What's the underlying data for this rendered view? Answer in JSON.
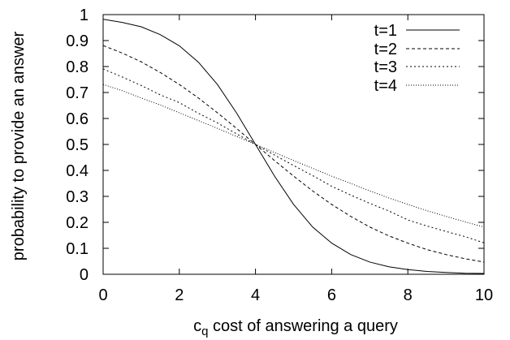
{
  "chart_data": {
    "type": "line",
    "title": "",
    "xlabel": "c",
    "xlabel_sub": "q",
    "xlabel_rest": " cost of answering a query",
    "ylabel": "probability to provide an answer",
    "xlim": [
      0,
      10
    ],
    "ylim": [
      0,
      1
    ],
    "xticks": [
      0,
      2,
      4,
      6,
      8,
      10
    ],
    "xtick_labels": [
      "0",
      "2",
      "4",
      "6",
      "8",
      "10"
    ],
    "yticks": [
      0,
      0.1,
      0.2,
      0.3,
      0.4,
      0.5,
      0.6,
      0.7,
      0.8,
      0.9,
      1
    ],
    "ytick_labels": [
      "0",
      "0.1",
      "0.2",
      "0.3",
      "0.4",
      "0.5",
      "0.6",
      "0.7",
      "0.8",
      "0.9",
      "1"
    ],
    "grid": false,
    "legend_position": "top-right",
    "x": [
      0,
      0.5,
      1,
      1.5,
      2,
      2.5,
      3,
      3.5,
      4,
      4.5,
      5,
      5.5,
      6,
      6.5,
      7,
      7.5,
      8,
      8.5,
      9,
      9.5,
      10
    ],
    "series": [
      {
        "name": "t=1",
        "style": "solid",
        "values": [
          0.982,
          0.97,
          0.953,
          0.923,
          0.88,
          0.817,
          0.731,
          0.622,
          0.5,
          0.378,
          0.269,
          0.182,
          0.12,
          0.076,
          0.047,
          0.029,
          0.018,
          0.011,
          0.007,
          0.004,
          0.003
        ]
      },
      {
        "name": "t=2",
        "style": "dashed",
        "values": [
          0.881,
          0.852,
          0.818,
          0.777,
          0.731,
          0.679,
          0.622,
          0.562,
          0.5,
          0.438,
          0.378,
          0.321,
          0.269,
          0.223,
          0.182,
          0.148,
          0.12,
          0.095,
          0.076,
          0.06,
          0.047
        ]
      },
      {
        "name": "t=3",
        "style": "dotted",
        "values": [
          0.791,
          0.76,
          0.727,
          0.691,
          0.661,
          0.62,
          0.583,
          0.541,
          0.5,
          0.459,
          0.419,
          0.38,
          0.339,
          0.305,
          0.273,
          0.244,
          0.209,
          0.186,
          0.165,
          0.145,
          0.121
        ]
      },
      {
        "name": "t=4",
        "style": "fine-dotted",
        "values": [
          0.731,
          0.707,
          0.679,
          0.652,
          0.622,
          0.592,
          0.562,
          0.531,
          0.5,
          0.469,
          0.438,
          0.408,
          0.378,
          0.35,
          0.321,
          0.294,
          0.269,
          0.245,
          0.223,
          0.202,
          0.182
        ]
      }
    ]
  },
  "colors": {
    "line": "#000000",
    "background": "#ffffff"
  }
}
